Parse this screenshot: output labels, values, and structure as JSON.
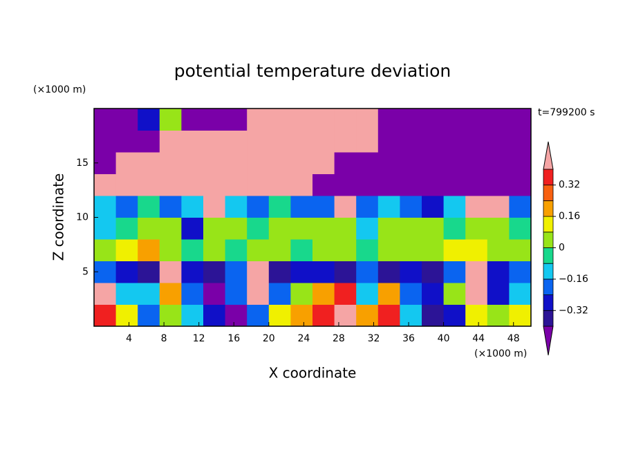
{
  "chart_data": {
    "type": "contour",
    "title": "potential temperature deviation",
    "x_label": "X coordinate",
    "y_label": "Z coordinate",
    "x_unit": "(×1000 m)",
    "y_unit": "(×1000 m)",
    "annotation": "t=799200 s",
    "xlim": [
      0,
      50
    ],
    "ylim": [
      0,
      20
    ],
    "xticks": [
      4,
      8,
      12,
      16,
      20,
      24,
      28,
      32,
      36,
      40,
      44,
      48
    ],
    "yticks": [
      5,
      10,
      15
    ],
    "levels": [
      -0.4,
      -0.32,
      -0.24,
      -0.16,
      -0.08,
      0,
      0.08,
      0.16,
      0.24,
      0.32,
      0.4
    ],
    "colors": [
      "#7a00a8",
      "#2c1496",
      "#1010c8",
      "#0a64f0",
      "#14c8f0",
      "#18d88c",
      "#98e418",
      "#f0f000",
      "#f8a000",
      "#f86010",
      "#f02020",
      "#f5a5a5"
    ],
    "colorbar_ticks": [
      0.32,
      0.16,
      0,
      {
        "value": -0.16,
        "label": "−0.16"
      },
      {
        "value": -0.32,
        "label": "−0.32"
      }
    ],
    "x": [
      1.25,
      3.75,
      6.25,
      8.75,
      11.25,
      13.75,
      16.25,
      18.75,
      21.25,
      23.75,
      26.25,
      28.75,
      31.25,
      33.75,
      36.25,
      38.75,
      41.25,
      43.75,
      46.25,
      48.75
    ],
    "y": [
      1,
      3,
      5,
      7,
      9,
      11,
      13,
      15,
      17,
      19
    ],
    "z": [
      [
        0.36,
        0.12,
        -0.2,
        0.04,
        -0.12,
        -0.28,
        -0.45,
        -0.2,
        0.12,
        0.2,
        0.36,
        0.45,
        0.2,
        0.36,
        -0.12,
        -0.36,
        -0.28,
        0.12,
        0.04,
        0.12
      ],
      [
        0.45,
        -0.12,
        -0.12,
        0.2,
        -0.2,
        -0.45,
        -0.2,
        0.45,
        -0.2,
        0.04,
        0.2,
        0.36,
        -0.12,
        0.2,
        -0.2,
        -0.28,
        0.04,
        0.45,
        -0.28,
        -0.12
      ],
      [
        -0.2,
        -0.28,
        -0.36,
        0.45,
        -0.28,
        -0.36,
        -0.2,
        0.45,
        -0.36,
        -0.28,
        -0.28,
        -0.36,
        -0.2,
        -0.36,
        -0.28,
        -0.36,
        -0.2,
        0.45,
        -0.28,
        -0.2
      ],
      [
        0.04,
        0.12,
        0.2,
        0.04,
        -0.04,
        0.04,
        -0.04,
        0.04,
        0.04,
        -0.04,
        0.04,
        0.04,
        -0.04,
        0.04,
        0.04,
        0.04,
        0.12,
        0.12,
        0.04,
        0.04
      ],
      [
        -0.12,
        -0.04,
        0.04,
        0.04,
        -0.28,
        0.04,
        0.04,
        -0.04,
        0.04,
        0.04,
        0.04,
        0.04,
        -0.12,
        0.04,
        0.04,
        0.04,
        -0.04,
        0.04,
        0.04,
        -0.04
      ],
      [
        -0.12,
        -0.2,
        -0.04,
        -0.2,
        -0.12,
        0.45,
        -0.12,
        -0.2,
        -0.04,
        -0.2,
        -0.2,
        0.45,
        -0.2,
        -0.12,
        -0.2,
        -0.28,
        -0.12,
        0.45,
        0.45,
        -0.2
      ],
      [
        0.45,
        0.45,
        0.45,
        0.45,
        0.45,
        0.45,
        0.45,
        0.45,
        0.45,
        0.45,
        -0.45,
        -0.45,
        -0.45,
        -0.45,
        -0.45,
        -0.45,
        -0.45,
        -0.45,
        -0.45,
        -0.45
      ],
      [
        -0.45,
        0.45,
        0.45,
        0.45,
        0.45,
        0.45,
        0.45,
        0.45,
        0.45,
        0.45,
        0.45,
        -0.45,
        -0.45,
        -0.45,
        -0.45,
        -0.45,
        -0.45,
        -0.45,
        -0.45,
        -0.45
      ],
      [
        -0.45,
        -0.45,
        -0.45,
        0.45,
        0.45,
        0.45,
        0.45,
        0.45,
        0.45,
        0.45,
        0.45,
        0.45,
        0.45,
        -0.45,
        -0.45,
        -0.45,
        -0.45,
        -0.45,
        -0.45,
        -0.45
      ],
      [
        -0.45,
        -0.45,
        -0.28,
        0.04,
        -0.45,
        -0.45,
        -0.45,
        0.45,
        0.45,
        0.45,
        0.45,
        0.45,
        0.45,
        -0.45,
        -0.45,
        -0.45,
        -0.45,
        -0.45,
        -0.45,
        -0.45
      ]
    ]
  }
}
